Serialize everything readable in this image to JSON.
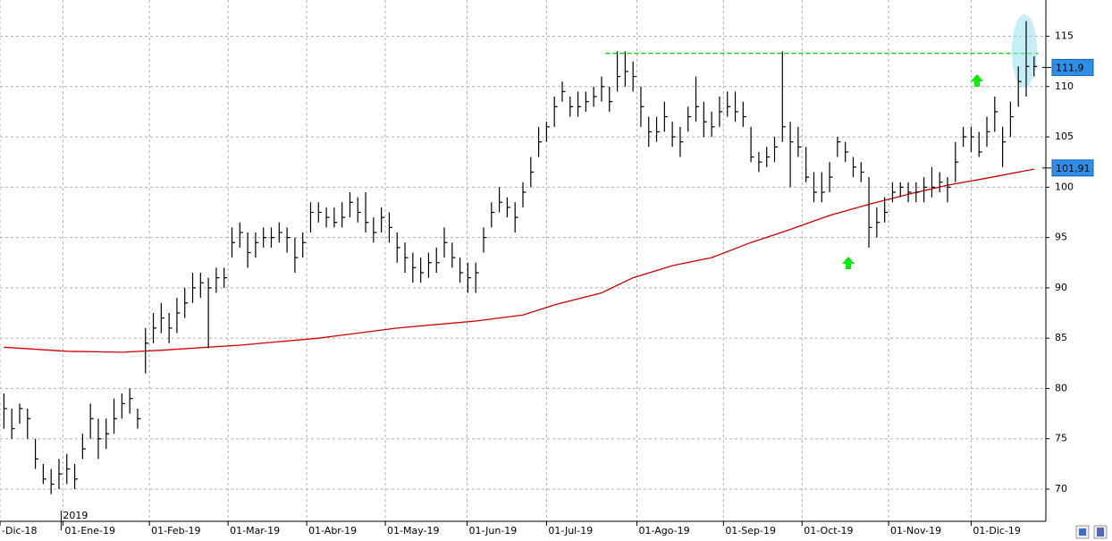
{
  "chart_data": {
    "type": "ohlc",
    "high": [
      79.5,
      78,
      78.5,
      78,
      75,
      72.5,
      72,
      73,
      73.5,
      72.5,
      75.5,
      78.5,
      77,
      77,
      79,
      79.5,
      80,
      78,
      86,
      87.5,
      88.5,
      87.5,
      89,
      90,
      91.5,
      91.5,
      91,
      92,
      92,
      96,
      96.5,
      95.5,
      95.5,
      96,
      96,
      96.5,
      96,
      95,
      95.5,
      98.5,
      98.5,
      98,
      98,
      98.5,
      99.5,
      99,
      99.5,
      97,
      98,
      97.5,
      95.5,
      94.5,
      93.5,
      93,
      93.5,
      94,
      96,
      94.5,
      93,
      92.5,
      92.5,
      96,
      98.5,
      100,
      99,
      98.5,
      100.5,
      103,
      106,
      106.5,
      109,
      110.5,
      109,
      109.5,
      109.5,
      110,
      111,
      110,
      113.5,
      113.5,
      112.5,
      110,
      107,
      107,
      108.5,
      106.5,
      106,
      108,
      111,
      108.5,
      107.5,
      109,
      109.5,
      109.5,
      108.5,
      106,
      103.5,
      104,
      105,
      113.5,
      106.5,
      106,
      104,
      101.5,
      101.5,
      102.5,
      105,
      104.5,
      103,
      102.5,
      101,
      98,
      99,
      100.5,
      100.5,
      100.5,
      100.5,
      101,
      102,
      101.5,
      101,
      104.5,
      106,
      106,
      105.5,
      107,
      109,
      106,
      108.5,
      112,
      116.5,
      113
    ],
    "low": [
      76,
      75,
      76.5,
      75,
      72,
      70.5,
      69.5,
      70,
      70.5,
      70,
      73,
      75,
      73,
      74,
      75.5,
      77,
      77.5,
      76,
      81.5,
      84.5,
      85.5,
      84.5,
      85.5,
      87,
      88.5,
      89,
      84,
      89.5,
      90,
      93,
      94,
      92,
      93,
      94,
      94,
      94.5,
      93.5,
      91.5,
      93,
      95.5,
      96.5,
      96,
      96,
      96,
      97,
      96.5,
      95.5,
      94.5,
      95.5,
      94.5,
      92.5,
      91.5,
      90.5,
      90.5,
      91,
      91.5,
      93,
      92,
      90.5,
      89.5,
      89.5,
      93.5,
      96,
      97.5,
      97,
      95.5,
      98,
      100,
      103,
      104.5,
      106,
      108.5,
      107,
      107,
      107.5,
      108,
      108.5,
      107.5,
      109.5,
      110,
      109.5,
      106,
      104,
      104.5,
      105.5,
      104,
      103,
      105.5,
      106.5,
      105,
      105,
      106,
      107,
      106.5,
      106,
      102.5,
      101.5,
      102,
      102.5,
      104.5,
      100,
      103,
      100.5,
      98.5,
      98.5,
      99.5,
      103,
      102.5,
      101,
      100.5,
      94,
      95,
      96.5,
      98.5,
      99,
      98.5,
      98.5,
      98.5,
      99,
      99.5,
      98.5,
      100.5,
      104,
      103.5,
      103,
      104,
      105.5,
      102,
      105,
      108,
      109,
      111
    ],
    "close": [
      78,
      76,
      78,
      77,
      73,
      71,
      70.5,
      71.5,
      72,
      71,
      74,
      77,
      75,
      75.5,
      77,
      78.5,
      79,
      77,
      84.5,
      86,
      87,
      86,
      87.5,
      88.5,
      90,
      90.5,
      90,
      91,
      91,
      94.5,
      95.5,
      93.5,
      94.5,
      95,
      95,
      95.5,
      95,
      93,
      94.5,
      97.5,
      97.5,
      97,
      96.5,
      97,
      98.5,
      97.5,
      96.5,
      95.5,
      97,
      96,
      94,
      93,
      92,
      91.5,
      92.5,
      92.5,
      94.5,
      93,
      91.5,
      91,
      91.5,
      95,
      97.5,
      98.5,
      98,
      97,
      99.5,
      101.5,
      104.5,
      106,
      108,
      109.5,
      108,
      108,
      108.5,
      109,
      110,
      108.5,
      111,
      111.5,
      111,
      108,
      105.5,
      105.5,
      107,
      105,
      104.5,
      107,
      108,
      106.5,
      106,
      107.5,
      108,
      107.5,
      107,
      103,
      102.5,
      103,
      104,
      106,
      104.5,
      104,
      101,
      99.5,
      99.5,
      101,
      104.5,
      103.5,
      102,
      101.5,
      96,
      96.5,
      97.5,
      99.5,
      100,
      99.5,
      99.5,
      100,
      100,
      100.5,
      100,
      102.5,
      105,
      105,
      103.5,
      105.5,
      107.5,
      104.5,
      107,
      110.5,
      112,
      112
    ],
    "color": "#000000",
    "ma": {
      "color": "#d00000",
      "x": [
        0,
        8,
        15,
        20,
        30,
        40,
        50,
        60,
        66,
        70,
        76,
        80,
        85,
        90,
        95,
        100,
        105,
        110,
        115,
        120,
        125,
        131
      ],
      "values": [
        84.1,
        83.7,
        83.6,
        83.8,
        84.3,
        85.0,
        86.0,
        86.7,
        87.3,
        88.3,
        89.5,
        91.0,
        92.2,
        93.0,
        94.5,
        95.8,
        97.2,
        98.3,
        99.3,
        100.2,
        100.9,
        101.8
      ]
    },
    "resistance": {
      "value": 113.3,
      "from": 77,
      "to": 131,
      "color": "#00dd00"
    },
    "last_labels": [
      {
        "value": 111.9,
        "label": "111,9"
      },
      {
        "value": 101.91,
        "label": "101,91"
      }
    ],
    "ylim": [
      66.8,
      118.6
    ],
    "yticks": [
      70,
      75,
      80,
      85,
      90,
      95,
      100,
      105,
      110,
      115
    ],
    "xlim": [
      0,
      133
    ],
    "xticks": [
      {
        "value": 0,
        "label": "-Dic-18"
      },
      {
        "value": 8,
        "label": "01-Ene-19"
      },
      {
        "value": 19,
        "label": "01-Feb-19"
      },
      {
        "value": 29,
        "label": "01-Mar-19"
      },
      {
        "value": 39,
        "label": "01-Abr-19"
      },
      {
        "value": 49,
        "label": "01-May-19"
      },
      {
        "value": 59.4,
        "label": "01-Jun-19"
      },
      {
        "value": 69.5,
        "label": "01-Jul-19"
      },
      {
        "value": 81,
        "label": "01-Ago-19"
      },
      {
        "value": 92,
        "label": "01-Sep-19"
      },
      {
        "value": 102,
        "label": "01-Oct-19"
      },
      {
        "value": 113,
        "label": "01-Nov-19"
      },
      {
        "value": 123.5,
        "label": "01-Dic-19"
      }
    ],
    "year_label": {
      "value": 8,
      "label": "2019"
    },
    "grid": true
  }
}
